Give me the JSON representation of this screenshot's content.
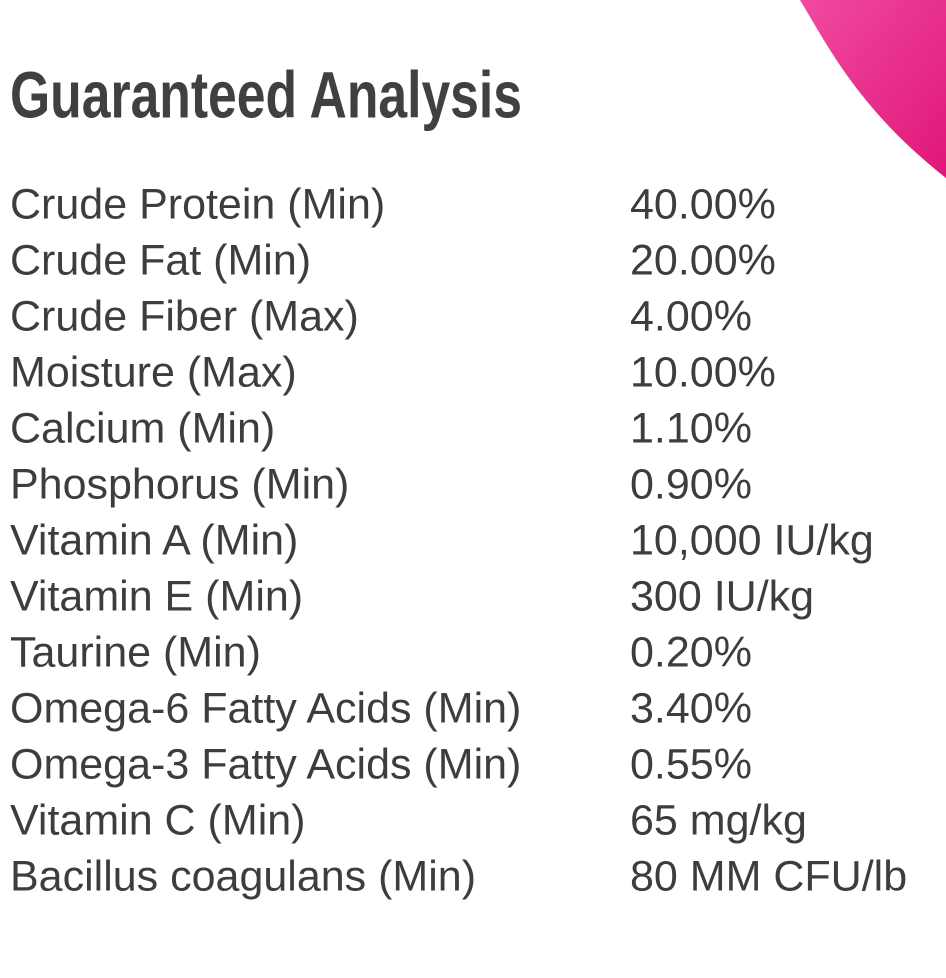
{
  "header": {
    "title": "Guaranteed Analysis"
  },
  "table": {
    "rows": [
      [
        "Crude Protein (Min)",
        "40.00%"
      ],
      [
        "Crude Fat (Min)",
        "20.00%"
      ],
      [
        "Crude Fiber (Max)",
        "4.00%"
      ],
      [
        "Moisture (Max)",
        "10.00%"
      ],
      [
        "Calcium (Min)",
        "1.10%"
      ],
      [
        "Phosphorus (Min)",
        "0.90%"
      ],
      [
        "Vitamin A (Min)",
        "10,000 IU/kg"
      ],
      [
        "Vitamin E (Min)",
        "300 IU/kg"
      ],
      [
        "Taurine (Min)",
        "0.20%"
      ],
      [
        "Omega-6 Fatty Acids (Min)",
        "3.40%"
      ],
      [
        "Omega-3 Fatty Acids (Min)",
        "0.55%"
      ],
      [
        "Vitamin C (Min)",
        "65 mg/kg"
      ],
      [
        "Bacillus coagulans (Min)",
        "80 MM CFU/lb"
      ]
    ]
  }
}
